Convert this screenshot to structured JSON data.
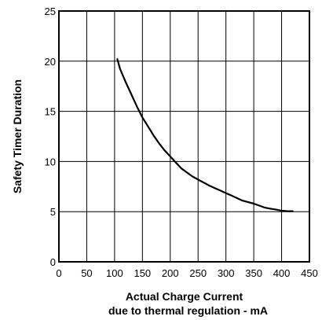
{
  "chart_data": {
    "type": "line",
    "xlabel_line1": "Actual Charge Current",
    "xlabel_line2": "due to thermal regulation - mA",
    "ylabel": "Safety Timer Duration",
    "xlim": [
      0,
      450
    ],
    "ylim": [
      0,
      25
    ],
    "x_ticks": [
      0,
      50,
      100,
      150,
      200,
      250,
      300,
      350,
      400,
      450
    ],
    "y_ticks": [
      0,
      5,
      10,
      15,
      20,
      25
    ],
    "grid": true,
    "line_color": "#000000",
    "series": [
      {
        "x": [
          105,
          110,
          120,
          130,
          140,
          150,
          160,
          170,
          180,
          190,
          200,
          210,
          220,
          230,
          240,
          250,
          260,
          270,
          280,
          290,
          300,
          310,
          320,
          330,
          340,
          350,
          360,
          370,
          380,
          390,
          400,
          410,
          420
        ],
        "y": [
          20.2,
          19.2,
          17.9,
          16.7,
          15.5,
          14.4,
          13.5,
          12.6,
          11.8,
          11.1,
          10.5,
          9.9,
          9.3,
          8.9,
          8.5,
          8.2,
          7.9,
          7.6,
          7.35,
          7.1,
          6.85,
          6.6,
          6.35,
          6.1,
          5.95,
          5.8,
          5.6,
          5.4,
          5.3,
          5.2,
          5.1,
          5.05,
          5.05
        ]
      }
    ]
  }
}
